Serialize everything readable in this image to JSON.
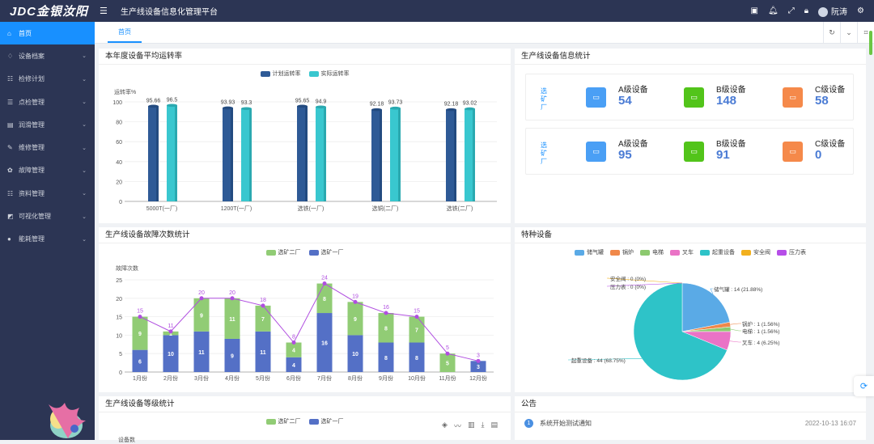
{
  "topbar": {
    "logo_text": "JDC金银汝阳",
    "app_title": "生产线设备信息化管理平台",
    "user_name": "阮涛"
  },
  "sidebar": {
    "items": [
      {
        "label": "首页",
        "icon": "home-icon",
        "active": true
      },
      {
        "label": "设备档案",
        "icon": "archive-icon"
      },
      {
        "label": "检修计划",
        "icon": "plan-icon"
      },
      {
        "label": "点检管理",
        "icon": "inspect-icon"
      },
      {
        "label": "润滑管理",
        "icon": "lubricate-icon"
      },
      {
        "label": "维修管理",
        "icon": "repair-icon"
      },
      {
        "label": "故障管理",
        "icon": "fault-icon"
      },
      {
        "label": "资料管理",
        "icon": "document-icon"
      },
      {
        "label": "可视化管理",
        "icon": "visual-icon"
      },
      {
        "label": "能耗管理",
        "icon": "energy-icon"
      }
    ]
  },
  "tabs": [
    {
      "label": "首页"
    }
  ],
  "panels": {
    "runrate_title": "本年度设备平均运转率",
    "info_title": "生产线设备信息统计",
    "fault_title": "生产线设备故障次数统计",
    "special_title": "特种设备",
    "grade_title": "生产线设备等级统计",
    "notice_title": "公告"
  },
  "device_info": [
    {
      "factory": "选矿厂",
      "grades": [
        {
          "label": "A级设备",
          "value": "54"
        },
        {
          "label": "B级设备",
          "value": "148"
        },
        {
          "label": "C级设备",
          "value": "58"
        }
      ]
    },
    {
      "factory": "选矿厂",
      "grades": [
        {
          "label": "A级设备",
          "value": "95"
        },
        {
          "label": "B级设备",
          "value": "91"
        },
        {
          "label": "C级设备",
          "value": "0"
        }
      ]
    }
  ],
  "notices": [
    {
      "index": "1",
      "text": "系统开始测试通知",
      "time": "2022-10-13 16:07"
    }
  ],
  "grade_chart": {
    "legend": [
      "选矿二厂",
      "选矿一厂"
    ],
    "ylabel": "设备数"
  },
  "colors": {
    "accent": "#1890ff",
    "sidebar": "#2c3554",
    "plan": "#2e5a96",
    "actual": "#39c7cf",
    "green": "#91cc75",
    "blue": "#5470c6"
  },
  "chart_data": [
    {
      "type": "bar",
      "title": "本年度设备平均运转率",
      "ylabel": "运转率%",
      "ylim": [
        0,
        100
      ],
      "yticks": [
        0,
        20,
        40,
        60,
        80,
        100
      ],
      "categories": [
        "5000T(一厂)",
        "1200T(一厂)",
        "选铁(一厂)",
        "选铜(二厂)",
        "选铁(二厂)"
      ],
      "series": [
        {
          "name": "计划运转率",
          "values": [
            95.66,
            93.93,
            95.65,
            92.18,
            92.18
          ]
        },
        {
          "name": "实际运转率",
          "values": [
            96.5,
            93.3,
            94.9,
            93.73,
            93.02
          ]
        }
      ],
      "legend": "top-center"
    },
    {
      "type": "bar",
      "title": "生产线设备故障次数统计",
      "ylabel": "故障次数",
      "ylim": [
        0,
        25
      ],
      "yticks": [
        0,
        5,
        10,
        15,
        20,
        25
      ],
      "categories": [
        "1月份",
        "2月份",
        "3月份",
        "4月份",
        "5月份",
        "6月份",
        "7月份",
        "8月份",
        "9月份",
        "10月份",
        "11月份",
        "12月份"
      ],
      "series": [
        {
          "name": "选矿二厂",
          "values": [
            9,
            1,
            9,
            11,
            7,
            4,
            8,
            9,
            8,
            7,
            5,
            0
          ]
        },
        {
          "name": "选矿一厂",
          "values": [
            6,
            10,
            11,
            9,
            11,
            4,
            16,
            10,
            8,
            8,
            0,
            3
          ]
        }
      ],
      "totals": [
        15,
        11,
        20,
        20,
        18,
        8,
        24,
        19,
        16,
        15,
        5,
        3
      ],
      "legend": "top-center"
    },
    {
      "type": "pie",
      "title": "特种设备",
      "slices": [
        {
          "name": "储气罐",
          "value": 14,
          "label": "储气罐 : 14 (21.88%)",
          "color": "#5aaae6"
        },
        {
          "name": "锅炉",
          "value": 1,
          "label": "锅炉 : 1 (1.56%)",
          "color": "#f0884a"
        },
        {
          "name": "电梯",
          "value": 1,
          "label": "电梯 : 1 (1.56%)",
          "color": "#8cc96f"
        },
        {
          "name": "叉车",
          "value": 4,
          "label": "叉车 : 4 (6.25%)",
          "color": "#ea73c6"
        },
        {
          "name": "起重设备",
          "value": 44,
          "label": "起重设备 : 44 (68.75%)",
          "color": "#2ec3c8"
        },
        {
          "name": "安全阀",
          "value": 0,
          "label": "安全阀 : 0 (0%)",
          "color": "#f2b01e"
        },
        {
          "name": "压力表",
          "value": 0,
          "label": "压力表 : 0 (0%)",
          "color": "#b64ee8"
        }
      ],
      "legend": "top-center"
    }
  ]
}
